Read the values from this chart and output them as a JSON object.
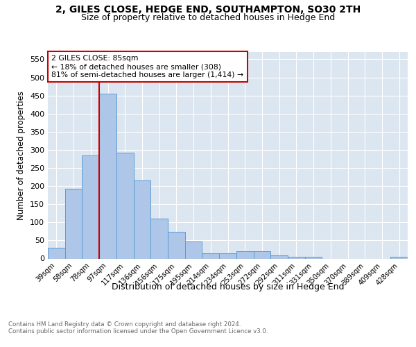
{
  "title": "2, GILES CLOSE, HEDGE END, SOUTHAMPTON, SO30 2TH",
  "subtitle": "Size of property relative to detached houses in Hedge End",
  "xlabel": "Distribution of detached houses by size in Hedge End",
  "ylabel": "Number of detached properties",
  "categories": [
    "39sqm",
    "58sqm",
    "78sqm",
    "97sqm",
    "117sqm",
    "136sqm",
    "156sqm",
    "175sqm",
    "195sqm",
    "214sqm",
    "234sqm",
    "253sqm",
    "272sqm",
    "292sqm",
    "311sqm",
    "331sqm",
    "350sqm",
    "370sqm",
    "389sqm",
    "409sqm",
    "428sqm"
  ],
  "values": [
    30,
    192,
    285,
    455,
    292,
    215,
    110,
    74,
    47,
    14,
    14,
    21,
    21,
    8,
    4,
    4,
    0,
    0,
    0,
    0,
    5
  ],
  "bar_color": "#aec6e8",
  "bar_edge_color": "#5b9bd5",
  "vline_x": 2.5,
  "vline_color": "#cc0000",
  "annotation_text": "2 GILES CLOSE: 85sqm\n← 18% of detached houses are smaller (308)\n81% of semi-detached houses are larger (1,414) →",
  "annotation_box_color": "#ffffff",
  "annotation_box_edge": "#cc0000",
  "ylim": [
    0,
    570
  ],
  "yticks": [
    0,
    50,
    100,
    150,
    200,
    250,
    300,
    350,
    400,
    450,
    500,
    550
  ],
  "plot_bg_color": "#dce6f0",
  "footer_line1": "Contains HM Land Registry data © Crown copyright and database right 2024.",
  "footer_line2": "Contains public sector information licensed under the Open Government Licence v3.0.",
  "title_fontsize": 10,
  "subtitle_fontsize": 9
}
